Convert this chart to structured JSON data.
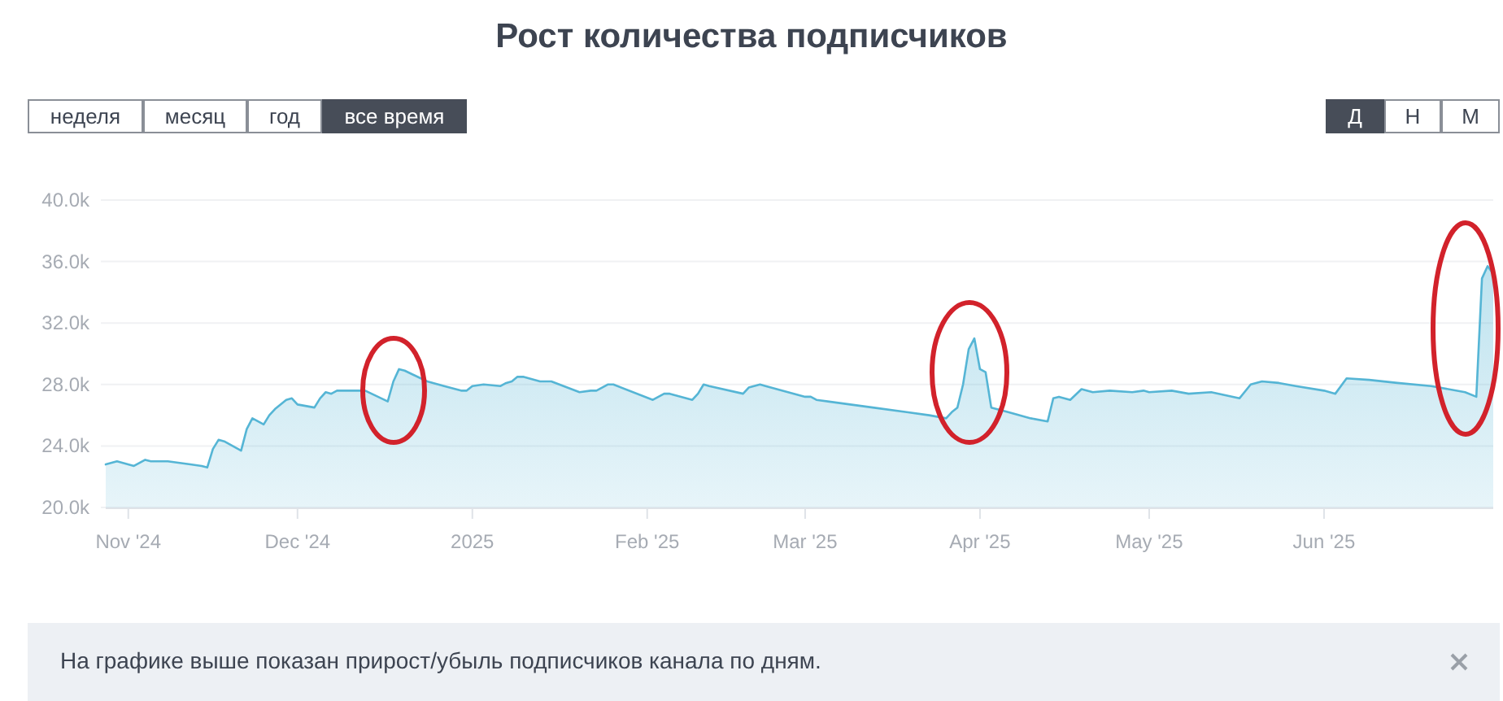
{
  "chart_data": {
    "type": "area",
    "title": "Рост количества подписчиков",
    "annotations": [
      "неделя",
      "месяц",
      "год",
      "все время",
      "Д",
      "Н",
      "М",
      "На графике выше показан прирост/убыль подписчиков канала по дням."
    ],
    "x": [
      "2024-10-28",
      "2024-10-30",
      "2024-11-02",
      "2024-11-04",
      "2024-11-05",
      "2024-11-08",
      "2024-11-12",
      "2024-11-14",
      "2024-11-15",
      "2024-11-16",
      "2024-11-17",
      "2024-11-18",
      "2024-11-21",
      "2024-11-22",
      "2024-11-23",
      "2024-11-24",
      "2024-11-25",
      "2024-11-26",
      "2024-11-27",
      "2024-11-29",
      "2024-11-30",
      "2024-12-01",
      "2024-12-04",
      "2024-12-05",
      "2024-12-06",
      "2024-12-07",
      "2024-12-08",
      "2024-12-11",
      "2024-12-13",
      "2024-12-17",
      "2024-12-18",
      "2024-12-19",
      "2024-12-20",
      "2024-12-24",
      "2024-12-27",
      "2024-12-30",
      "2024-12-31",
      "2025-01-01",
      "2025-01-03",
      "2025-01-06",
      "2025-01-07",
      "2025-01-08",
      "2025-01-09",
      "2025-01-10",
      "2025-01-13",
      "2025-01-15",
      "2025-01-20",
      "2025-01-22",
      "2025-01-23",
      "2025-01-25",
      "2025-01-26",
      "2025-02-02",
      "2025-02-04",
      "2025-02-05",
      "2025-02-09",
      "2025-02-10",
      "2025-02-11",
      "2025-02-12",
      "2025-02-18",
      "2025-02-19",
      "2025-02-21",
      "2025-02-22",
      "2025-03-01",
      "2025-03-02",
      "2025-03-03",
      "2025-03-09",
      "2025-03-13",
      "2025-03-19",
      "2025-03-23",
      "2025-03-26",
      "2025-03-27",
      "2025-03-28",
      "2025-03-29",
      "2025-03-30",
      "2025-03-31",
      "2025-04-01",
      "2025-04-02",
      "2025-04-03",
      "2025-04-06",
      "2025-04-10",
      "2025-04-13",
      "2025-04-14",
      "2025-04-15",
      "2025-04-17",
      "2025-04-19",
      "2025-04-21",
      "2025-04-24",
      "2025-04-28",
      "2025-04-30",
      "2025-05-01",
      "2025-05-05",
      "2025-05-08",
      "2025-05-12",
      "2025-05-17",
      "2025-05-19",
      "2025-05-21",
      "2025-05-24",
      "2025-05-27",
      "2025-06-01",
      "2025-06-03",
      "2025-06-05",
      "2025-06-09",
      "2025-06-14",
      "2025-06-20",
      "2025-06-26",
      "2025-06-28",
      "2025-06-29",
      "2025-06-30",
      "2025-07-01"
    ],
    "values": [
      22800,
      23000,
      22700,
      23100,
      23000,
      23000,
      22800,
      22700,
      22600,
      23800,
      24400,
      24300,
      23700,
      25100,
      25800,
      25600,
      25400,
      26000,
      26400,
      27000,
      27100,
      26700,
      26500,
      27100,
      27500,
      27400,
      27600,
      27600,
      27600,
      26900,
      28200,
      29000,
      28900,
      28200,
      27900,
      27600,
      27600,
      27900,
      28000,
      27900,
      28100,
      28200,
      28500,
      28500,
      28200,
      28200,
      27500,
      27600,
      27600,
      28000,
      28000,
      27000,
      27400,
      27400,
      27000,
      27400,
      28000,
      27900,
      27400,
      27800,
      28000,
      27900,
      27200,
      27200,
      27000,
      26700,
      26500,
      26200,
      26000,
      25800,
      26200,
      26500,
      28000,
      30300,
      31000,
      29000,
      28800,
      26500,
      26200,
      25800,
      25600,
      27100,
      27200,
      27000,
      27700,
      27500,
      27600,
      27500,
      27600,
      27500,
      27600,
      27400,
      27500,
      27100,
      28000,
      28200,
      28100,
      27900,
      27600,
      27400,
      28400,
      28300,
      28100,
      27900,
      27500,
      27200,
      34900,
      35700,
      35200
    ],
    "color": "#55b5d5",
    "xlim": [
      "2024-10-28",
      "2025-07-01"
    ],
    "xticks": [
      {
        "value": "2024-11-01",
        "label": "Nov '24"
      },
      {
        "value": "2024-12-01",
        "label": "Dec '24"
      },
      {
        "value": "2025-01-01",
        "label": "2025"
      },
      {
        "value": "2025-02-01",
        "label": "Feb '25"
      },
      {
        "value": "2025-03-01",
        "label": "Mar '25"
      },
      {
        "value": "2025-04-01",
        "label": "Apr '25"
      },
      {
        "value": "2025-05-01",
        "label": "May '25"
      },
      {
        "value": "2025-06-01",
        "label": "Jun '25"
      }
    ],
    "ylim": [
      20000,
      40000
    ],
    "yticks": [
      {
        "value": 20000,
        "label": "20.0k"
      },
      {
        "value": 24000,
        "label": "24.0k"
      },
      {
        "value": 28000,
        "label": "28.0k"
      },
      {
        "value": 32000,
        "label": "32.0k"
      },
      {
        "value": 36000,
        "label": "36.0k"
      },
      {
        "value": 40000,
        "label": "40.0k"
      }
    ],
    "grid": "y"
  }
}
